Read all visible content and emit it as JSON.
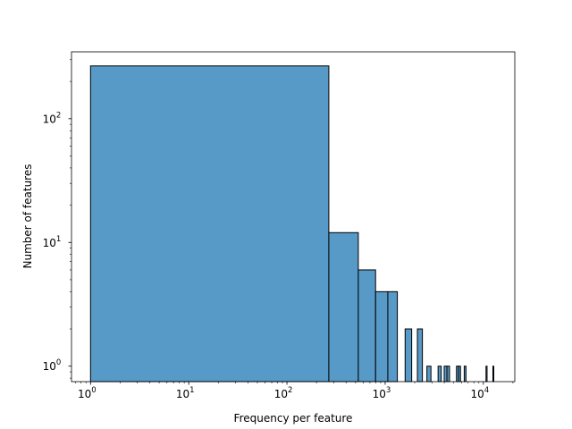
{
  "chart_data": {
    "type": "bar",
    "subtype": "histogram",
    "xlabel": "Frequency per feature",
    "ylabel": "Number of features",
    "xscale": "log",
    "yscale": "log",
    "xlim": [
      0.64,
      20900
    ],
    "ylim": [
      0.75,
      347
    ],
    "grid": false,
    "bin_start": 1,
    "bin_width": 266,
    "counts": [
      267,
      12,
      6,
      4,
      4,
      0,
      2,
      0,
      2,
      0,
      1,
      0,
      0,
      1,
      0,
      1,
      1,
      0,
      0,
      0,
      1,
      1,
      0,
      0,
      1,
      0,
      0,
      0,
      0,
      0,
      0,
      0,
      0,
      0,
      0,
      0,
      0,
      0,
      0,
      0,
      1,
      0,
      0,
      0,
      0,
      0,
      0,
      1
    ],
    "x_ticks": [
      {
        "value": 1,
        "base": "10",
        "exp": "0"
      },
      {
        "value": 10,
        "base": "10",
        "exp": "1"
      },
      {
        "value": 100,
        "base": "10",
        "exp": "2"
      },
      {
        "value": 1000,
        "base": "10",
        "exp": "3"
      },
      {
        "value": 10000,
        "base": "10",
        "exp": "4"
      }
    ],
    "y_ticks": [
      {
        "value": 1,
        "base": "10",
        "exp": "0"
      },
      {
        "value": 10,
        "base": "10",
        "exp": "1"
      },
      {
        "value": 100,
        "base": "10",
        "exp": "2"
      }
    ],
    "bar_color": "#5799c7",
    "edge_color": "#000000"
  }
}
